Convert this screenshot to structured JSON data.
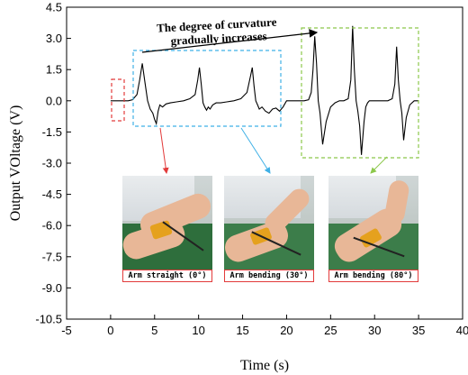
{
  "chart_data": {
    "type": "line",
    "xlabel": "Time (s)",
    "ylabel": "Output VOltage (V)",
    "xlim": [
      -5,
      40
    ],
    "ylim": [
      -10.5,
      4.5
    ],
    "xticks": [
      "-5",
      "0",
      "5",
      "10",
      "15",
      "20",
      "25",
      "30",
      "35",
      "40"
    ],
    "yticks": [
      "4.5",
      "3.0",
      "1.5",
      "0.0",
      "-1.5",
      "-3.0",
      "-4.5",
      "-6.0",
      "-7.5",
      "-9.0",
      "-10.5"
    ],
    "series": [
      {
        "x": [
          0.0,
          2.0,
          2.5,
          3.0,
          3.3,
          3.6,
          3.9,
          4.2,
          4.5,
          4.8,
          5.0,
          5.2,
          5.4,
          5.6,
          5.9,
          6.3,
          6.8,
          7.5,
          8.3,
          9.0,
          9.6,
          9.9,
          10.1,
          10.3,
          10.5,
          10.7,
          10.9,
          11.1,
          11.3,
          11.6,
          12.0,
          12.5,
          13.2,
          14.0,
          14.8,
          15.5,
          15.9,
          16.1,
          16.3,
          16.5,
          16.7,
          16.9,
          17.2,
          17.6,
          18.0,
          18.4,
          18.8,
          19.2,
          19.6,
          20.0,
          21.0,
          22.0,
          22.5,
          22.8,
          23.0,
          23.2,
          23.4,
          23.6,
          23.8,
          24.1,
          24.5,
          25.0,
          25.5,
          26.0,
          26.5,
          27.0,
          27.3,
          27.5,
          27.7,
          27.9,
          28.1,
          28.3,
          28.5,
          28.8,
          29.0,
          29.2,
          29.4,
          29.6,
          30.0,
          30.5,
          31.0,
          31.5,
          32.0,
          32.3,
          32.5,
          32.7,
          32.9,
          33.1,
          33.3,
          33.6,
          34.0,
          34.5,
          35.0
        ],
        "values": [
          0.0,
          0.0,
          0.05,
          0.3,
          1.0,
          1.8,
          0.9,
          0.0,
          -0.4,
          -0.6,
          -0.9,
          -1.1,
          -0.5,
          -0.2,
          -0.3,
          -0.15,
          -0.1,
          -0.05,
          0.0,
          0.1,
          0.3,
          1.0,
          1.6,
          0.8,
          -0.1,
          -0.3,
          -0.45,
          -0.3,
          -0.4,
          -0.2,
          -0.1,
          -0.1,
          -0.05,
          0.0,
          0.1,
          0.4,
          1.2,
          1.6,
          0.7,
          0.0,
          -0.2,
          -0.4,
          -0.3,
          -0.5,
          -0.6,
          -0.4,
          -0.35,
          -0.5,
          -0.3,
          0.0,
          0.0,
          0.0,
          0.05,
          0.4,
          1.5,
          3.1,
          1.8,
          0.0,
          -0.6,
          -2.1,
          -1.0,
          -0.3,
          -0.1,
          0.0,
          0.0,
          0.1,
          1.0,
          3.6,
          1.5,
          0.0,
          -0.5,
          -1.2,
          -2.6,
          -1.0,
          -0.3,
          -0.1,
          0.0,
          0.0,
          0.0,
          0.0,
          0.0,
          0.0,
          0.1,
          0.8,
          2.6,
          1.0,
          0.0,
          -0.6,
          -1.9,
          -0.8,
          -0.2,
          0.0,
          0.0
        ]
      }
    ],
    "annotation": "The degree of curvature gradually increases",
    "photos": [
      {
        "caption": "Arm straight (0°)"
      },
      {
        "caption": "Arm bending (30°)"
      },
      {
        "caption": "Arm bending (80°)"
      }
    ],
    "colors": {
      "red": "#e23b3b",
      "blue": "#3fb0e6",
      "green": "#8cc84b",
      "line": "#000000"
    },
    "grid": false
  }
}
